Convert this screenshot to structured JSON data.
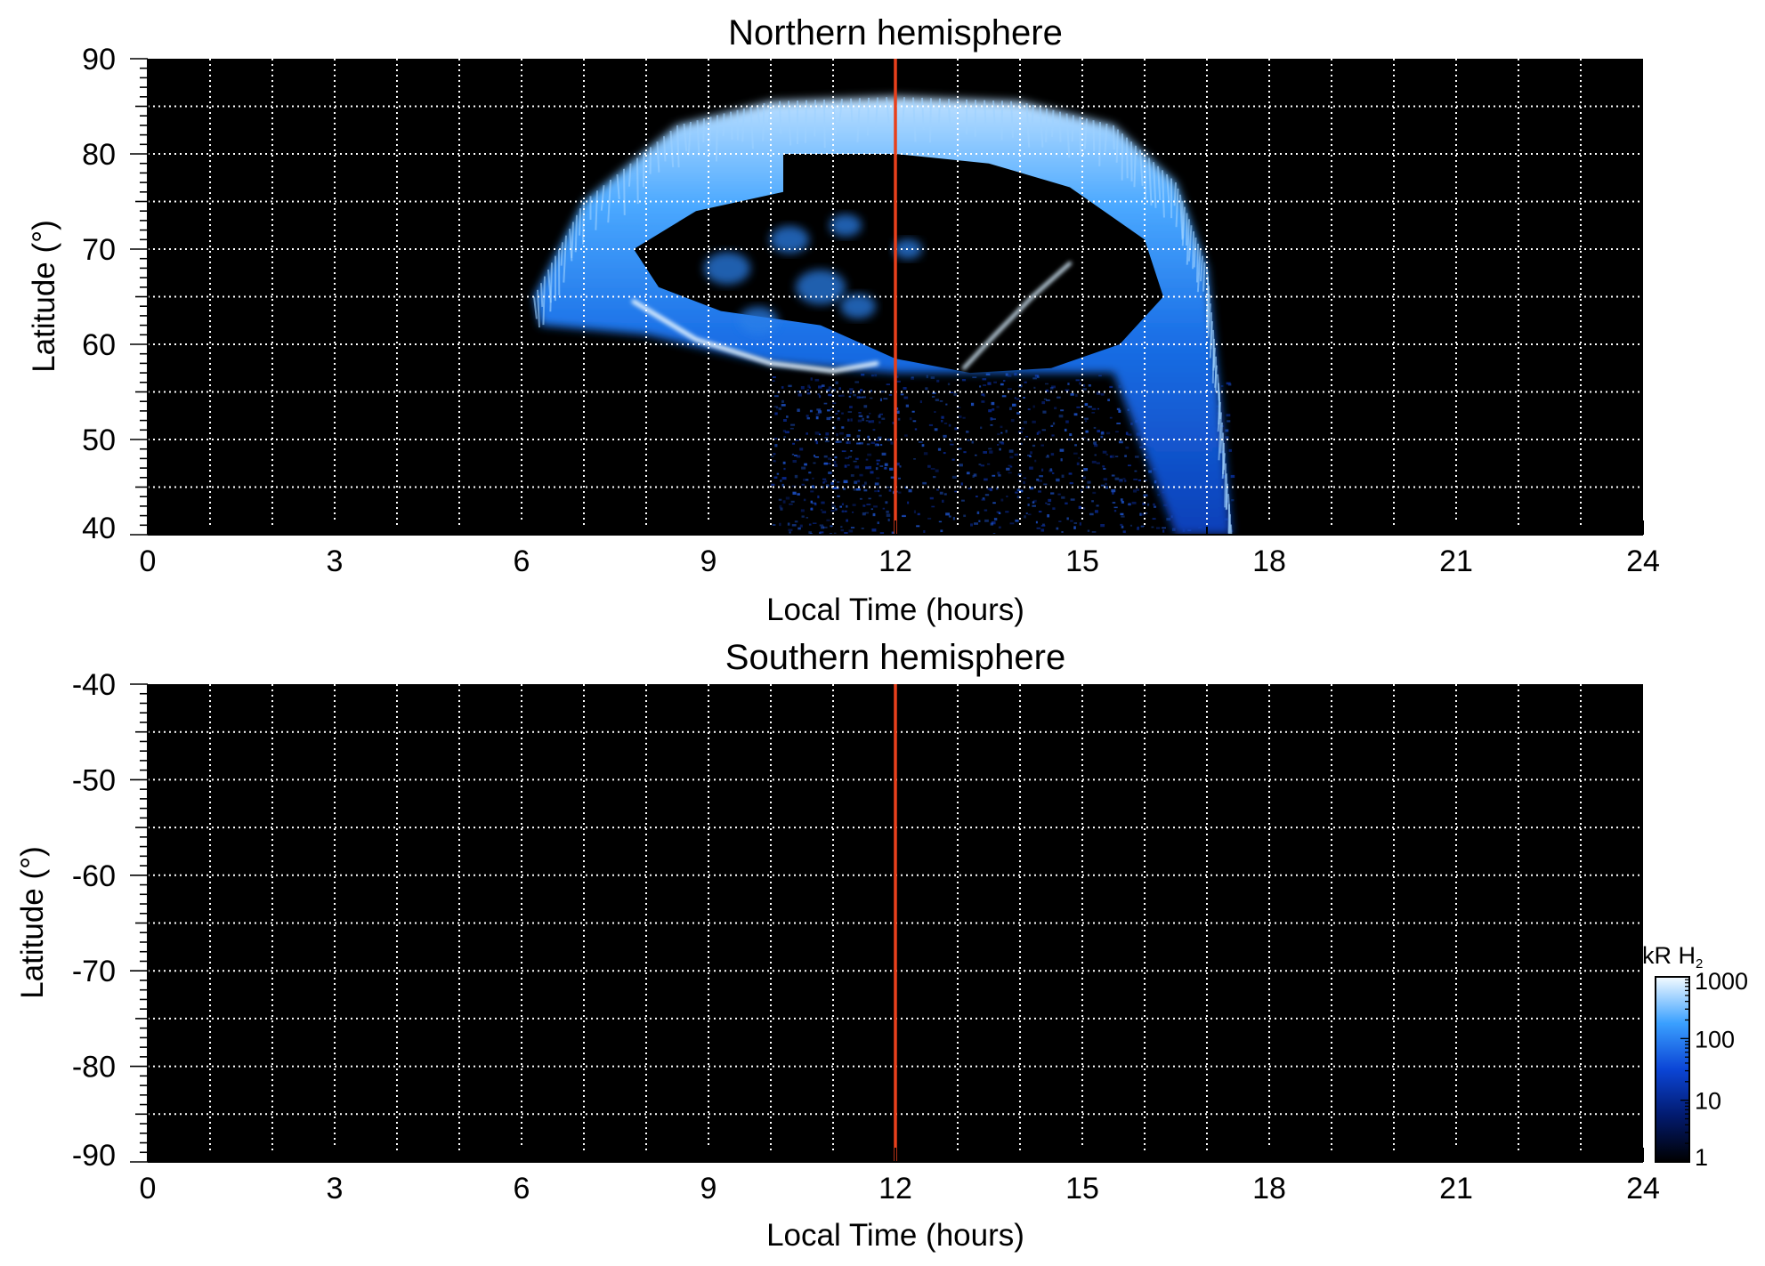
{
  "chart_data": [
    {
      "type": "heatmap",
      "title": "Northern hemisphere",
      "xlabel": "Local Time (hours)",
      "ylabel": "Latitude (°)",
      "xlim": [
        0,
        24
      ],
      "ylim": [
        40,
        90
      ],
      "x_ticks": [
        "0",
        "3",
        "6",
        "9",
        "12",
        "15",
        "18",
        "21",
        "24"
      ],
      "y_ticks": [
        "90",
        "80",
        "70",
        "60",
        "50",
        "40"
      ],
      "y_tick_values": [
        90,
        80,
        70,
        60,
        50,
        40
      ],
      "grid": true,
      "grid_style": "dotted white, every 1 hour and every 5 degrees",
      "marker_line": {
        "x": 12,
        "color": "#e8401c"
      },
      "features": {
        "main_oval_outer_edge_deg": [
          [
            6.2,
            65
          ],
          [
            7,
            75
          ],
          [
            8.5,
            83
          ],
          [
            10,
            85.5
          ],
          [
            12,
            86
          ],
          [
            14,
            85.5
          ],
          [
            15.5,
            83
          ],
          [
            16.5,
            77
          ],
          [
            17,
            68
          ],
          [
            17.2,
            55
          ],
          [
            17.4,
            40
          ]
        ],
        "polar_cap_dark_region_deg": [
          [
            10.2,
            80
          ],
          [
            12,
            80
          ],
          [
            13.5,
            79
          ],
          [
            14.8,
            76.5
          ],
          [
            16,
            71
          ],
          [
            16.3,
            65
          ],
          [
            15.6,
            60
          ],
          [
            14.5,
            57.5
          ],
          [
            13.2,
            57
          ],
          [
            12,
            58.5
          ],
          [
            10.8,
            62
          ],
          [
            9.2,
            63.5
          ],
          [
            8.2,
            66
          ],
          [
            7.8,
            70
          ],
          [
            8.8,
            74
          ],
          [
            10.2,
            76
          ]
        ],
        "bright_arc_deg": [
          [
            7.8,
            64.5
          ],
          [
            8.8,
            60.5
          ],
          [
            10,
            58
          ],
          [
            11,
            57.2
          ],
          [
            11.7,
            58
          ]
        ],
        "isolated_arc_deg": [
          [
            13.1,
            57.5
          ],
          [
            13.6,
            61
          ],
          [
            14.2,
            65
          ],
          [
            14.8,
            68.5
          ]
        ]
      }
    },
    {
      "type": "heatmap",
      "title": "Southern hemisphere",
      "xlabel": "Local Time (hours)",
      "ylabel": "Latitude (°)",
      "xlim": [
        0,
        24
      ],
      "ylim": [
        -90,
        -40
      ],
      "x_ticks": [
        "0",
        "3",
        "6",
        "9",
        "12",
        "15",
        "18",
        "21",
        "24"
      ],
      "y_ticks": [
        "-40",
        "-50",
        "-60",
        "-70",
        "-80",
        "-90"
      ],
      "y_tick_values": [
        -40,
        -50,
        -60,
        -70,
        -80,
        -90
      ],
      "grid": true,
      "grid_style": "dotted white, every 1 hour and every 5 degrees",
      "marker_line": {
        "x": 12,
        "color": "#e8401c"
      },
      "note_values": "no emission (entire panel at minimum of color scale)"
    }
  ],
  "colorbar": {
    "label_main": "kR H",
    "label_sub": "2",
    "scale": "log",
    "range": [
      1,
      1000
    ],
    "tick_labels": [
      "1000",
      "100",
      "10",
      "1"
    ],
    "tick_values": [
      1000,
      100,
      10,
      1
    ],
    "colors": [
      "#000000",
      "#021a6e",
      "#0b45d6",
      "#3aa0ff",
      "#f4fbff"
    ]
  }
}
